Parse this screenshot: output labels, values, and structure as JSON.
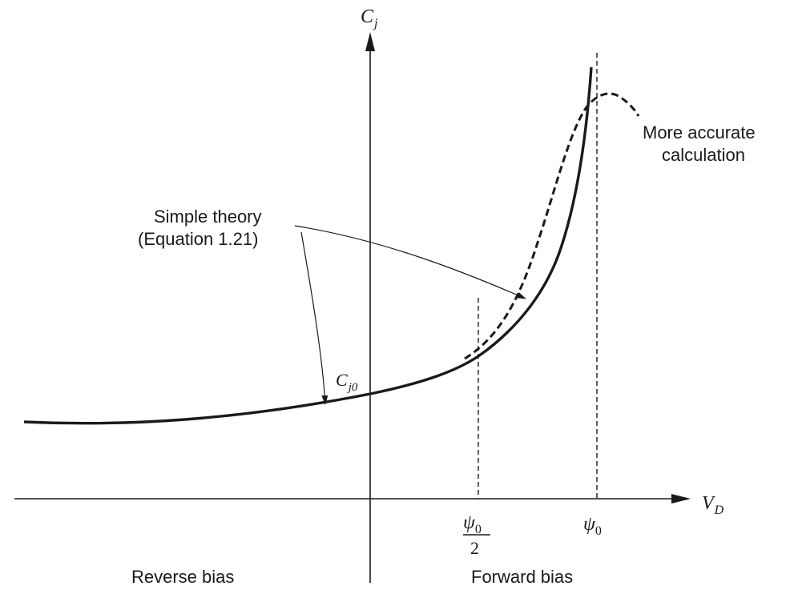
{
  "axes": {
    "y_label_main": "C",
    "y_label_sub": "j",
    "x_label_main": "V",
    "x_label_sub": "D"
  },
  "ticks": {
    "half_psi_main": "ψ",
    "half_psi_sub": "0",
    "half_psi_den": "2",
    "psi_main": "ψ",
    "psi_sub": "0"
  },
  "curve_labels": {
    "cj0_main": "C",
    "cj0_sub": "j0",
    "simple_theory_line1": "Simple theory",
    "simple_theory_line2": "(Equation 1.21)",
    "accurate_line1": "More accurate",
    "accurate_line2": "calculation"
  },
  "regions": {
    "reverse": "Reverse bias",
    "forward": "Forward bias"
  },
  "colors": {
    "ink": "#1a1a1a"
  }
}
